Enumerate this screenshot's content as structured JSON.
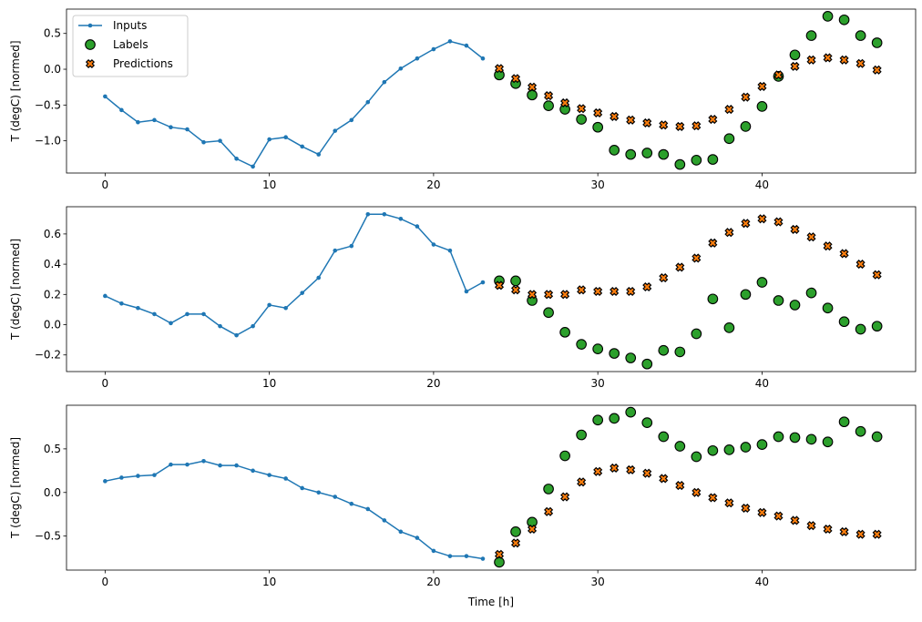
{
  "chart_data": [
    {
      "type": "line",
      "ylabel": "T (degC) [normed]",
      "xlabel": "",
      "xlim": [
        -2.35,
        49.35
      ],
      "ylim": [
        -1.45,
        0.84
      ],
      "xticks": [
        0,
        10,
        20,
        30,
        40
      ],
      "yticks": [
        0.5,
        0.0,
        -0.5,
        -1.0
      ],
      "ytick_labels": [
        "0.5",
        "0.0",
        "−0.5",
        "−1.0"
      ],
      "grid": false,
      "legend": {
        "placement": "top-left",
        "entries": [
          "Inputs",
          "Labels",
          "Predictions"
        ]
      },
      "inputs": {
        "x_start": 0,
        "values": [
          -0.38,
          -0.57,
          -0.74,
          -0.71,
          -0.81,
          -0.84,
          -1.02,
          -1.0,
          -1.25,
          -1.36,
          -0.98,
          -0.95,
          -1.08,
          -1.19,
          -0.86,
          -0.71,
          -0.46,
          -0.18,
          0.01,
          0.15,
          0.28,
          0.39,
          0.33,
          0.15
        ]
      },
      "labels": {
        "x_start": 24,
        "values": [
          -0.08,
          -0.2,
          -0.36,
          -0.51,
          -0.56,
          -0.7,
          -0.81,
          -1.13,
          -1.19,
          -1.17,
          -1.19,
          -1.33,
          -1.27,
          -1.26,
          -0.97,
          -0.8,
          -0.52,
          -0.1,
          0.2,
          0.47,
          0.74,
          0.69,
          0.47,
          0.37
        ]
      },
      "predictions": {
        "x_start": 24,
        "values": [
          0.01,
          -0.13,
          -0.25,
          -0.37,
          -0.47,
          -0.55,
          -0.61,
          -0.66,
          -0.71,
          -0.75,
          -0.78,
          -0.8,
          -0.79,
          -0.7,
          -0.56,
          -0.39,
          -0.24,
          -0.08,
          0.04,
          0.13,
          0.16,
          0.13,
          0.08,
          -0.01
        ]
      }
    },
    {
      "type": "line",
      "ylabel": "T (degC) [normed]",
      "xlabel": "",
      "xlim": [
        -2.35,
        49.35
      ],
      "ylim": [
        -0.31,
        0.78
      ],
      "xticks": [
        0,
        10,
        20,
        30,
        40
      ],
      "yticks": [
        0.6,
        0.4,
        0.2,
        0.0,
        -0.2
      ],
      "ytick_labels": [
        "0.6",
        "0.4",
        "0.2",
        "0.0",
        "−0.2"
      ],
      "grid": false,
      "inputs": {
        "x_start": 0,
        "values": [
          0.19,
          0.14,
          0.11,
          0.07,
          0.01,
          0.07,
          0.07,
          -0.01,
          -0.07,
          -0.01,
          0.13,
          0.11,
          0.21,
          0.31,
          0.49,
          0.52,
          0.73,
          0.73,
          0.7,
          0.65,
          0.53,
          0.49,
          0.22,
          0.28
        ]
      },
      "labels": {
        "x_start": 24,
        "values": [
          0.29,
          0.29,
          0.16,
          0.08,
          -0.05,
          -0.13,
          -0.16,
          -0.19,
          -0.22,
          -0.26,
          -0.17,
          -0.18,
          -0.06,
          0.17,
          -0.02,
          0.2,
          0.28,
          0.16,
          0.13,
          0.21,
          0.11,
          0.02,
          -0.03,
          -0.01
        ]
      },
      "predictions": {
        "x_start": 24,
        "values": [
          0.26,
          0.23,
          0.2,
          0.2,
          0.2,
          0.23,
          0.22,
          0.22,
          0.22,
          0.25,
          0.31,
          0.38,
          0.44,
          0.54,
          0.61,
          0.67,
          0.7,
          0.68,
          0.63,
          0.58,
          0.52,
          0.47,
          0.4,
          0.33
        ]
      }
    },
    {
      "type": "line",
      "ylabel": "T (degC) [normed]",
      "xlabel": "Time [h]",
      "xlim": [
        -2.35,
        49.35
      ],
      "ylim": [
        -0.89,
        1.0
      ],
      "xticks": [
        0,
        10,
        20,
        30,
        40
      ],
      "yticks": [
        0.5,
        0.0,
        -0.5
      ],
      "ytick_labels": [
        "0.5",
        "0.0",
        "−0.5"
      ],
      "grid": false,
      "inputs": {
        "x_start": 0,
        "values": [
          0.13,
          0.17,
          0.19,
          0.2,
          0.32,
          0.32,
          0.36,
          0.31,
          0.31,
          0.25,
          0.2,
          0.16,
          0.05,
          0.0,
          -0.05,
          -0.13,
          -0.19,
          -0.32,
          -0.45,
          -0.52,
          -0.67,
          -0.73,
          -0.73,
          -0.76
        ]
      },
      "labels": {
        "x_start": 24,
        "values": [
          -0.8,
          -0.45,
          -0.34,
          0.04,
          0.42,
          0.66,
          0.83,
          0.85,
          0.92,
          0.8,
          0.64,
          0.53,
          0.41,
          0.48,
          0.49,
          0.52,
          0.55,
          0.64,
          0.63,
          0.61,
          0.58,
          0.81,
          0.7,
          0.64
        ]
      },
      "predictions": {
        "x_start": 24,
        "values": [
          -0.71,
          -0.58,
          -0.42,
          -0.22,
          -0.05,
          0.12,
          0.24,
          0.28,
          0.26,
          0.22,
          0.16,
          0.08,
          0.0,
          -0.06,
          -0.12,
          -0.18,
          -0.23,
          -0.27,
          -0.32,
          -0.38,
          -0.42,
          -0.45,
          -0.48,
          -0.48
        ]
      }
    }
  ],
  "colors": {
    "inputs": "#1f77b4",
    "labels": "#2ca02c",
    "predictions": "#ff7f0e",
    "edge": "#000000"
  }
}
